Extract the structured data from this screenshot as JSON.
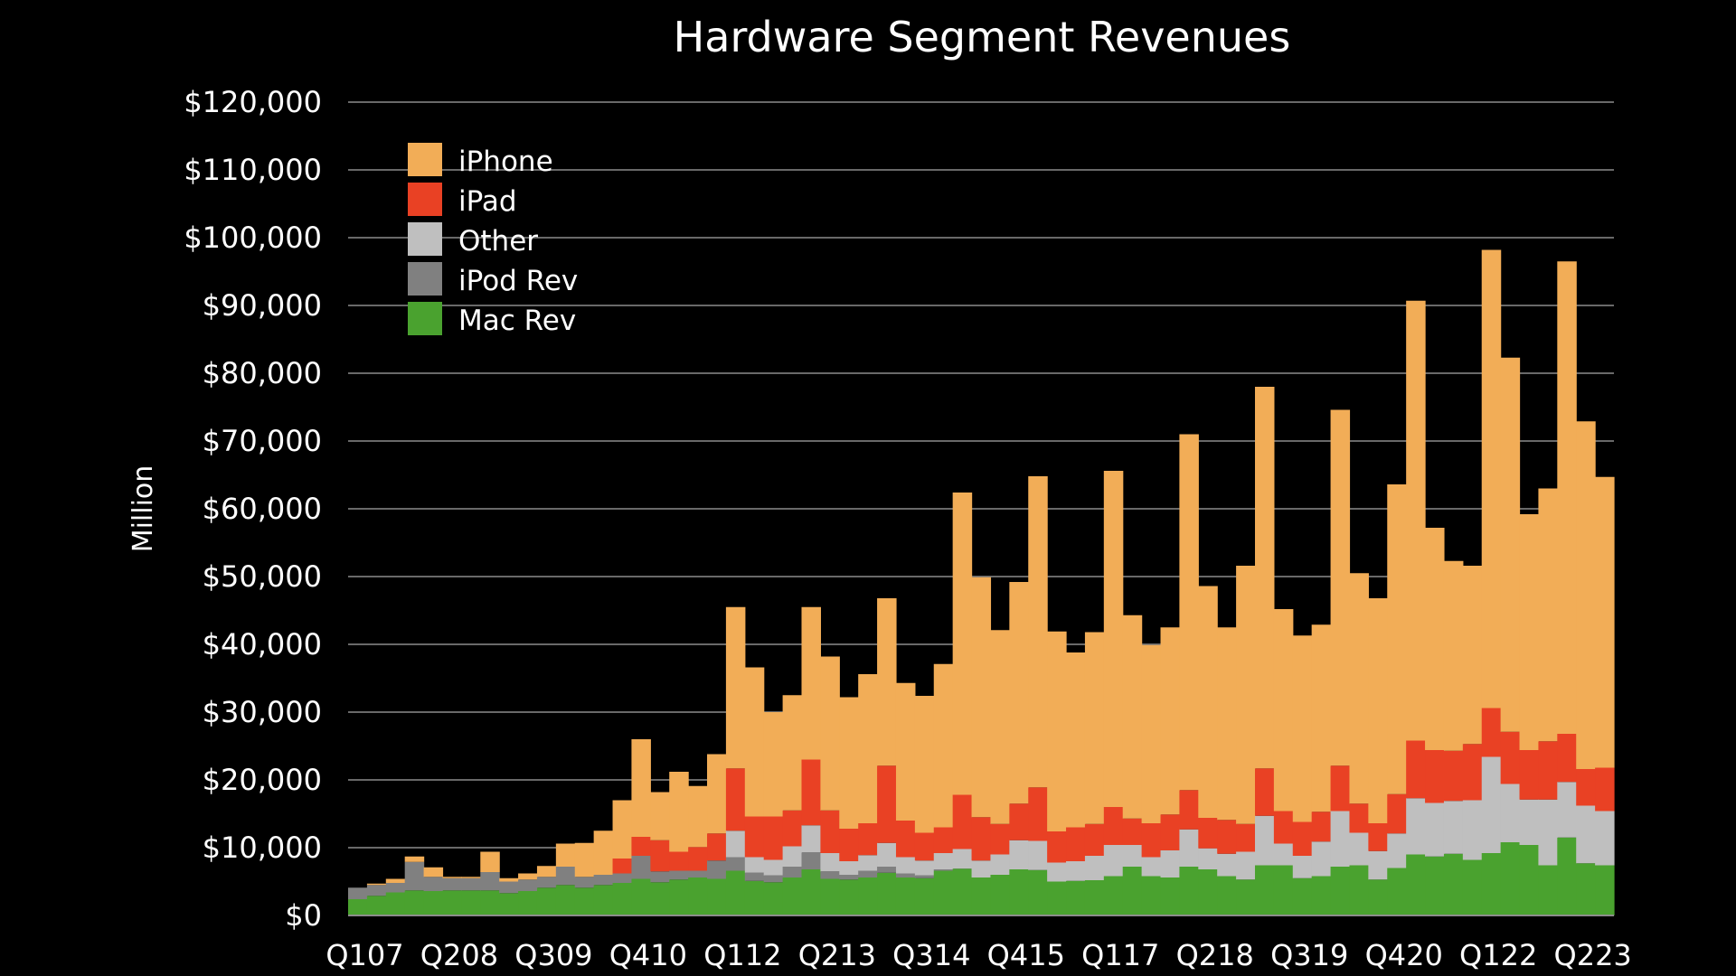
{
  "chart_data": {
    "type": "bar",
    "stacked": true,
    "title": "Hardware Segment Revenues",
    "xlabel": "",
    "ylabel": "Million",
    "ylim": [
      0,
      120000
    ],
    "ytick_step": 10000,
    "ytick_labels": [
      "$0",
      "$10,000",
      "$20,000",
      "$30,000",
      "$40,000",
      "$50,000",
      "$60,000",
      "$70,000",
      "$80,000",
      "$90,000",
      "$100,000",
      "$110,000",
      "$120,000"
    ],
    "grid": true,
    "legend": "top-left",
    "categories": [
      "Q107",
      "Q207",
      "Q307",
      "Q407",
      "Q108",
      "Q208",
      "Q308",
      "Q408",
      "Q109",
      "Q209",
      "Q309",
      "Q409",
      "Q110",
      "Q210",
      "Q310",
      "Q410",
      "Q111",
      "Q211",
      "Q311",
      "Q411",
      "Q112",
      "Q212",
      "Q312",
      "Q412",
      "Q113",
      "Q213",
      "Q313",
      "Q413",
      "Q114",
      "Q214",
      "Q314",
      "Q414",
      "Q115",
      "Q215",
      "Q315",
      "Q415",
      "Q116",
      "Q216",
      "Q316",
      "Q416",
      "Q117",
      "Q217",
      "Q317",
      "Q417",
      "Q118",
      "Q218",
      "Q318",
      "Q418",
      "Q119",
      "Q219",
      "Q319",
      "Q419",
      "Q120",
      "Q220",
      "Q320",
      "Q420",
      "Q121",
      "Q221",
      "Q321",
      "Q421",
      "Q122",
      "Q222",
      "Q322",
      "Q422",
      "Q123",
      "Q223",
      "Q323"
    ],
    "shown_xtick_labels": [
      "Q107",
      "Q208",
      "Q309",
      "Q410",
      "Q112",
      "Q213",
      "Q314",
      "Q415",
      "Q117",
      "Q218",
      "Q319",
      "Q420",
      "Q122",
      "Q223"
    ],
    "series": [
      {
        "name": "Mac Rev",
        "color": "#4aa22f",
        "values": [
          2400,
          2900,
          3400,
          3700,
          3600,
          3700,
          3700,
          3700,
          3300,
          3600,
          4100,
          4500,
          4100,
          4500,
          4800,
          5400,
          4900,
          5300,
          5600,
          5400,
          6600,
          5100,
          4900,
          5600,
          6800,
          5400,
          5300,
          5600,
          6300,
          5600,
          5500,
          6600,
          6900,
          5600,
          6000,
          6800,
          6700,
          5000,
          5100,
          5200,
          5800,
          7200,
          5800,
          5600,
          7200,
          6800,
          5800,
          5300,
          7400,
          7400,
          5500,
          5800,
          7200,
          7400,
          5300,
          7000,
          9000,
          8700,
          9100,
          8200,
          9200,
          10800,
          10400,
          7400,
          11500,
          7700,
          7400
        ]
      },
      {
        "name": "iPod Rev",
        "color": "#808080",
        "values": [
          1700,
          1600,
          1400,
          4200,
          2100,
          1800,
          1800,
          2700,
          1700,
          1700,
          1600,
          2700,
          1600,
          1500,
          1400,
          3400,
          1600,
          1300,
          1000,
          2700,
          2000,
          1200,
          1000,
          1600,
          2500,
          1100,
          700,
          1000,
          900,
          600,
          400,
          200,
          0,
          0,
          0,
          0,
          0,
          0,
          0,
          0,
          0,
          0,
          0,
          0,
          0,
          0,
          0,
          0,
          0,
          0,
          0,
          0,
          0,
          0,
          0,
          0,
          0,
          0,
          0,
          0,
          0,
          0,
          0,
          0,
          0,
          0,
          0
        ]
      },
      {
        "name": "Other",
        "color": "#bfbfbf",
        "values": [
          0,
          0,
          0,
          0,
          0,
          0,
          0,
          0,
          0,
          0,
          0,
          0,
          0,
          0,
          0,
          0,
          0,
          0,
          0,
          0,
          3900,
          2300,
          2300,
          3000,
          4000,
          2700,
          2000,
          2300,
          3500,
          2400,
          2200,
          2400,
          2900,
          2500,
          3000,
          4300,
          4300,
          2800,
          2900,
          3600,
          4600,
          3200,
          2800,
          4000,
          5500,
          3100,
          3300,
          4100,
          7300,
          3200,
          3300,
          5100,
          8200,
          4800,
          4200,
          5100,
          8300,
          7900,
          7800,
          8800,
          14200,
          8600,
          6700,
          9700,
          8200,
          8500,
          8000
        ]
      },
      {
        "name": "iPad",
        "color": "#e94124",
        "values": [
          0,
          0,
          0,
          0,
          0,
          0,
          0,
          0,
          0,
          0,
          0,
          0,
          0,
          0,
          2200,
          2800,
          4600,
          2800,
          3500,
          4000,
          9200,
          6000,
          6400,
          5300,
          9700,
          6300,
          4800,
          4700,
          11400,
          5400,
          4100,
          3800,
          8000,
          6400,
          4500,
          5400,
          7900,
          4600,
          5000,
          4700,
          5600,
          3900,
          5000,
          5300,
          5800,
          4500,
          5000,
          4100,
          7000,
          4800,
          5000,
          4400,
          6700,
          4300,
          4100,
          5800,
          8500,
          7800,
          7400,
          8300,
          7200,
          7700,
          7300,
          8600,
          7100,
          5400,
          6400
        ]
      },
      {
        "name": "iPhone",
        "color": "#f2ad57",
        "values": [
          0,
          200,
          600,
          800,
          1400,
          200,
          200,
          3000,
          500,
          900,
          1600,
          3400,
          5000,
          6500,
          8600,
          14400,
          7100,
          11800,
          9000,
          11700,
          23800,
          22000,
          15400,
          17000,
          22500,
          22700,
          19400,
          22000,
          24700,
          20300,
          20200,
          24100,
          44600,
          35400,
          28600,
          32700,
          45900,
          29500,
          25800,
          28300,
          49600,
          30000,
          26300,
          27600,
          52500,
          34200,
          28400,
          38100,
          56300,
          29800,
          27500,
          27600,
          52500,
          34000,
          33200,
          45700,
          64900,
          32800,
          28000,
          26300,
          67600,
          55200,
          34800,
          37300,
          69700,
          51300,
          42900
        ]
      }
    ]
  }
}
